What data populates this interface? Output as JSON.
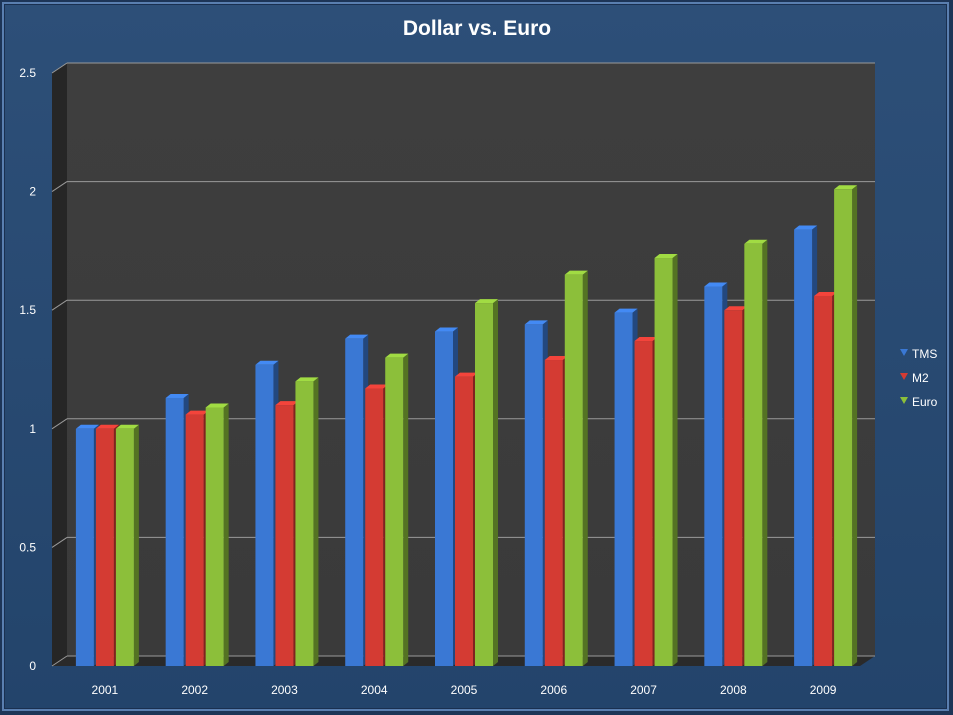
{
  "chart_data": {
    "type": "bar",
    "title": "Dollar vs. Euro",
    "xlabel": "",
    "ylabel": "",
    "categories": [
      "2001",
      "2002",
      "2003",
      "2004",
      "2005",
      "2006",
      "2007",
      "2008",
      "2009"
    ],
    "series": [
      {
        "name": "TMS",
        "color": "#3a78d4",
        "values": [
          1.0,
          1.13,
          1.27,
          1.38,
          1.41,
          1.44,
          1.49,
          1.6,
          1.84
        ]
      },
      {
        "name": "M2",
        "color": "#d43b33",
        "values": [
          1.0,
          1.06,
          1.1,
          1.17,
          1.22,
          1.29,
          1.37,
          1.5,
          1.56
        ]
      },
      {
        "name": "Euro",
        "color": "#8cbf3a",
        "values": [
          1.0,
          1.09,
          1.2,
          1.3,
          1.53,
          1.65,
          1.72,
          1.78,
          2.01
        ]
      }
    ],
    "ylim": [
      0,
      2.5
    ],
    "yticks": [
      "0",
      "0.5",
      "1",
      "1.5",
      "2",
      "2.5"
    ],
    "grid": true,
    "legend_position": "right"
  }
}
